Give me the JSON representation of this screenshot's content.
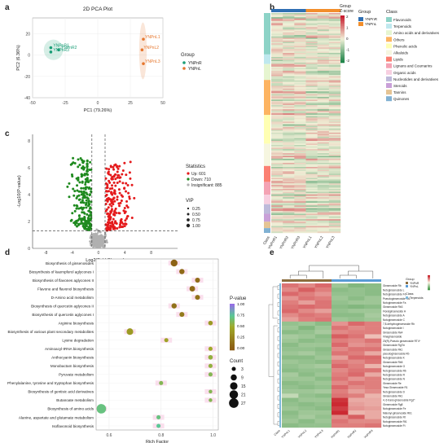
{
  "panel_letters": [
    "a",
    "b",
    "c",
    "d",
    "e"
  ],
  "chart_data": [
    {
      "panel": "a",
      "type": "scatter",
      "title": "2D PCA Plot",
      "xlabel": "PC1 (79.26%)",
      "ylabel": "PC2 (6.36%)",
      "xlim": [
        -50,
        50
      ],
      "ylim": [
        -40,
        35
      ],
      "xticks": [
        -50,
        -25,
        0,
        25,
        50
      ],
      "yticks": [
        -40,
        -20,
        0,
        20
      ],
      "grid": true,
      "legend_title": "Group",
      "legend_position": "right",
      "series": [
        {
          "name": "YNPnR",
          "color": "#1b9e77",
          "points": [
            {
              "x": -36,
              "y": 7,
              "label": "YNPnR1"
            },
            {
              "x": -30,
              "y": 5,
              "label": "YNPnR2"
            },
            {
              "x": -36,
              "y": 3,
              "label": "YNPnR3"
            }
          ]
        },
        {
          "name": "YNPnL",
          "color": "#e6772e",
          "points": [
            {
              "x": 35,
              "y": 15,
              "label": "YNPnL1"
            },
            {
              "x": 34,
              "y": 5,
              "label": "YNPnL2"
            },
            {
              "x": 35,
              "y": -8,
              "label": "YNPnL3"
            }
          ]
        }
      ]
    },
    {
      "panel": "b",
      "type": "heatmap",
      "legend_title": "Z-score",
      "scale_ticks": [
        "2",
        "1",
        "0",
        "-1",
        "-2"
      ],
      "group_title": "Group",
      "groups": [
        {
          "name": "YNPnR",
          "color": "#2f6fb3"
        },
        {
          "name": "YNPnL",
          "color": "#f28e2b"
        }
      ],
      "columns": [
        "YNPnR1",
        "YNPnR2",
        "YNPnR3",
        "YNPnL1",
        "YNPnL2",
        "YNPnL3"
      ],
      "class_title": "Class",
      "row_header": "Class",
      "classes": [
        {
          "name": "Flavonoids",
          "color": "#8dd3c7"
        },
        {
          "name": "Terpenoids",
          "color": "#bfe8ee"
        },
        {
          "name": "Amino acids and derivatives",
          "color": "#e6f5d0"
        },
        {
          "name": "Others",
          "color": "#fdb462"
        },
        {
          "name": "Phenolic acids",
          "color": "#ffffb3"
        },
        {
          "name": "Alkaloids",
          "color": "#f6f6e0"
        },
        {
          "name": "Lipids",
          "color": "#fb8072"
        },
        {
          "name": "Lignans and Coumarins",
          "color": "#f4a3b4"
        },
        {
          "name": "Organic acids",
          "color": "#f7cfe0"
        },
        {
          "name": "Nucleotides and derivatives",
          "color": "#bebada"
        },
        {
          "name": "Steroids",
          "color": "#c9a0d8"
        },
        {
          "name": "Tannins",
          "color": "#e5c494"
        },
        {
          "name": "Quinones",
          "color": "#80b1d3"
        }
      ]
    },
    {
      "panel": "c",
      "type": "scatter",
      "title": "",
      "xlabel": "Log2(Fold Change)",
      "ylabel": "-Log10(P-value)",
      "xlim": [
        -10,
        12
      ],
      "ylim": [
        0,
        8.5
      ],
      "xticks": [
        -8,
        -4,
        0,
        4,
        8
      ],
      "yticks": [
        0,
        2,
        4,
        6,
        8
      ],
      "thresholds": {
        "fold_change": [
          -1,
          1
        ],
        "p_line": 1.3
      },
      "legend_title": "Statistics",
      "legend": [
        {
          "name": "Up: 601",
          "color": "#e41a1c"
        },
        {
          "name": "Down: 710",
          "color": "#1f8a1f"
        },
        {
          "name": "Insignificant: 885",
          "color": "#b0b0b0"
        }
      ],
      "vip_title": "VIP",
      "vip": [
        0.25,
        0.5,
        0.75,
        1.0
      ],
      "counts": {
        "up": 601,
        "down": 710,
        "insignificant": 885
      }
    },
    {
      "panel": "d",
      "type": "scatter",
      "title": "",
      "xlabel": "Rich Factor",
      "ylabel": "",
      "xlim": [
        0.55,
        1.02
      ],
      "xticks": [
        0.6,
        0.8,
        1.0
      ],
      "color_legend_title": "P-value",
      "color_ticks": [
        1.0,
        0.75,
        0.5,
        0.25,
        0.0
      ],
      "size_legend_title": "Count",
      "size_ticks": [
        3,
        9,
        15,
        21,
        27
      ],
      "pathways": [
        {
          "name": "Biosynthesis of ginsenosides",
          "rich": 0.85,
          "count": 12,
          "p": 0.05
        },
        {
          "name": "Biosynthesis of kaempferol aglycones I",
          "rich": 0.88,
          "count": 6,
          "p": 0.1
        },
        {
          "name": "Biosynthesis of flavones aglycones II",
          "rich": 0.94,
          "count": 5,
          "p": 0.12
        },
        {
          "name": "Flavone and flavonol biosynthesis",
          "rich": 0.92,
          "count": 7,
          "p": 0.1
        },
        {
          "name": "D-Amino acid metabolism",
          "rich": 0.94,
          "count": 5,
          "p": 0.15
        },
        {
          "name": "Biosynthesis of quercetin aglycones II",
          "rich": 0.85,
          "count": 6,
          "p": 0.15
        },
        {
          "name": "Biosynthesis of quercetin aglycones I",
          "rich": 0.88,
          "count": 5,
          "p": 0.2
        },
        {
          "name": "Arginine biosynthesis",
          "rich": 0.99,
          "count": 4,
          "p": 0.4
        },
        {
          "name": "Biosynthesis of various plant secondary metabolites",
          "rich": 0.68,
          "count": 11,
          "p": 0.4
        },
        {
          "name": "Lysine degradation",
          "rich": 0.82,
          "count": 3,
          "p": 0.45
        },
        {
          "name": "Aminoacyl-tRNA biosynthesis",
          "rich": 0.99,
          "count": 3,
          "p": 0.5
        },
        {
          "name": "Anthocyanin biosynthesis",
          "rich": 0.99,
          "count": 4,
          "p": 0.55
        },
        {
          "name": "Monobactam biosynthesis",
          "rich": 0.99,
          "count": 3,
          "p": 0.55
        },
        {
          "name": "Pyruvate metabolism",
          "rich": 0.99,
          "count": 3,
          "p": 0.6
        },
        {
          "name": "Phenylalanine, tyrosine and tryptophan biosynthesis",
          "rich": 0.8,
          "count": 3,
          "p": 0.6
        },
        {
          "name": "Biosynthesis of gentisic acid derivatives",
          "rich": 0.99,
          "count": 2,
          "p": 0.6
        },
        {
          "name": "Butanoate metabolism",
          "rich": 0.99,
          "count": 2,
          "p": 0.6
        },
        {
          "name": "Biosynthesis of amino acids",
          "rich": 0.57,
          "count": 27,
          "p": 0.7
        },
        {
          "name": "Alanine, aspartate and glutamate metabolism",
          "rich": 0.79,
          "count": 3,
          "p": 0.7
        },
        {
          "name": "Isoflavonoid biosynthesis",
          "rich": 0.79,
          "count": 3,
          "p": 0.75
        }
      ]
    },
    {
      "panel": "e",
      "type": "heatmap",
      "columns": [
        "YNPnL1",
        "YNPnL2",
        "YNPnL3",
        "YNPnR1",
        "YNPnR2",
        "YNPnR3"
      ],
      "column_header": "Class",
      "group_legend_title": "Group",
      "group_legend": [
        "YNPnR",
        "YNPnL"
      ],
      "class_legend_title": "Class",
      "class_legend": [
        "Terpenoids"
      ],
      "rows": [
        "Ginsenoside Rb",
        "Notoginsenoside L",
        "Notoginsenoside Fd",
        "Pseudoginsenoside Rt1",
        "Notoginsenoside Fa",
        "Ginsenoside Rb3",
        "Floralginsenoside H",
        "Notoginsenoside A",
        "Notoginsenoside C",
        "7,8-dehydroginsenoside Rb",
        "Notoginsenoside I",
        "Ginsenoside Re4",
        "Vinaginsenoside",
        "20(R)-Pseudo ginsenoside RT4*",
        "Ginsenoside Rg7In",
        "Ginsenoside Rk1",
        "pseudoginsenoside Rb",
        "Notoginsenoside K",
        "Ginsenoside Rb5",
        "Notoginsenoside G",
        "Notoginsenoside Rb",
        "Notoginsenoside R",
        "Notoginsenoside N",
        "Ginsenoside Re",
        "Yesa Ginsenoside R1",
        "Notoginsenoside D",
        "Ginsenoside Rk1",
        "4, 6-trans-ginsenoside Rg1*",
        "Ginsenoside Rg8",
        "Notoginsenoside Fe",
        "Malonyl-ginsenoside Rb1",
        "Notoginsenoside Rt",
        "Notoginsenoside Rt1",
        "Notoginsenoside Ft"
      ],
      "z": [
        [
          1.2,
          1.0,
          1.3,
          -1.0,
          -1.3,
          -1.2
        ],
        [
          1.0,
          1.4,
          1.1,
          -1.2,
          -1.1,
          -1.2
        ],
        [
          1.3,
          1.1,
          0.9,
          -1.1,
          -1.1,
          -1.2
        ],
        [
          0.9,
          1.2,
          1.1,
          -1.0,
          -1.2,
          -1.0
        ],
        [
          1.1,
          0.8,
          1.2,
          -1.1,
          -1.0,
          -1.0
        ],
        [
          1.2,
          1.3,
          1.2,
          -1.2,
          -1.3,
          -1.2
        ],
        [
          1.3,
          1.0,
          0.8,
          -1.1,
          -1.0,
          -1.0
        ],
        [
          1.0,
          1.2,
          1.1,
          -1.2,
          -1.2,
          -0.9
        ],
        [
          0.8,
          1.1,
          1.2,
          -1.0,
          -1.1,
          -1.0
        ],
        [
          -1.1,
          -1.0,
          -1.2,
          0.9,
          1.3,
          1.1
        ],
        [
          -1.0,
          -1.3,
          -1.0,
          1.2,
          1.0,
          1.1
        ],
        [
          -1.2,
          -1.1,
          -0.9,
          1.0,
          1.1,
          1.1
        ],
        [
          -0.9,
          -1.0,
          -1.2,
          1.4,
          1.2,
          0.5
        ],
        [
          -1.0,
          -1.2,
          -1.1,
          1.1,
          1.0,
          1.2
        ],
        [
          -1.2,
          -1.0,
          -1.0,
          1.3,
          0.9,
          1.0
        ],
        [
          -1.1,
          -1.1,
          -1.2,
          1.0,
          1.2,
          1.2
        ],
        [
          -1.0,
          -0.9,
          -1.1,
          1.2,
          1.1,
          0.7
        ],
        [
          -1.2,
          -1.2,
          -1.0,
          0.8,
          1.3,
          1.3
        ],
        [
          -1.0,
          -1.1,
          -1.2,
          1.1,
          1.0,
          1.2
        ],
        [
          -1.1,
          -1.0,
          -0.9,
          1.3,
          1.1,
          0.6
        ],
        [
          -1.2,
          -1.1,
          -1.1,
          1.0,
          1.2,
          1.2
        ],
        [
          -0.9,
          -1.2,
          -1.0,
          1.1,
          1.3,
          0.7
        ],
        [
          -1.0,
          -1.0,
          -1.2,
          1.2,
          0.9,
          1.1
        ],
        [
          -1.2,
          -1.1,
          -1.0,
          1.0,
          1.2,
          1.1
        ],
        [
          -1.1,
          -1.2,
          -1.1,
          1.3,
          1.0,
          1.1
        ],
        [
          -1.0,
          -1.0,
          -0.9,
          1.1,
          0.8,
          1.0
        ],
        [
          -0.6,
          -1.1,
          -1.2,
          1.2,
          1.1,
          0.6
        ],
        [
          -1.2,
          -1.0,
          -1.0,
          1.8,
          0.7,
          0.7
        ],
        [
          -1.1,
          -1.2,
          -1.1,
          1.9,
          0.8,
          0.7
        ],
        [
          -1.0,
          -1.1,
          -1.2,
          1.7,
          0.9,
          0.8
        ],
        [
          -1.2,
          -1.0,
          -1.0,
          1.9,
          0.6,
          0.7
        ],
        [
          -1.1,
          -0.9,
          -1.1,
          1.0,
          1.4,
          0.7
        ],
        [
          -1.0,
          -1.2,
          -1.0,
          1.2,
          1.0,
          1.0
        ],
        [
          -1.2,
          -1.1,
          -1.1,
          1.1,
          1.1,
          1.2
        ]
      ]
    }
  ]
}
